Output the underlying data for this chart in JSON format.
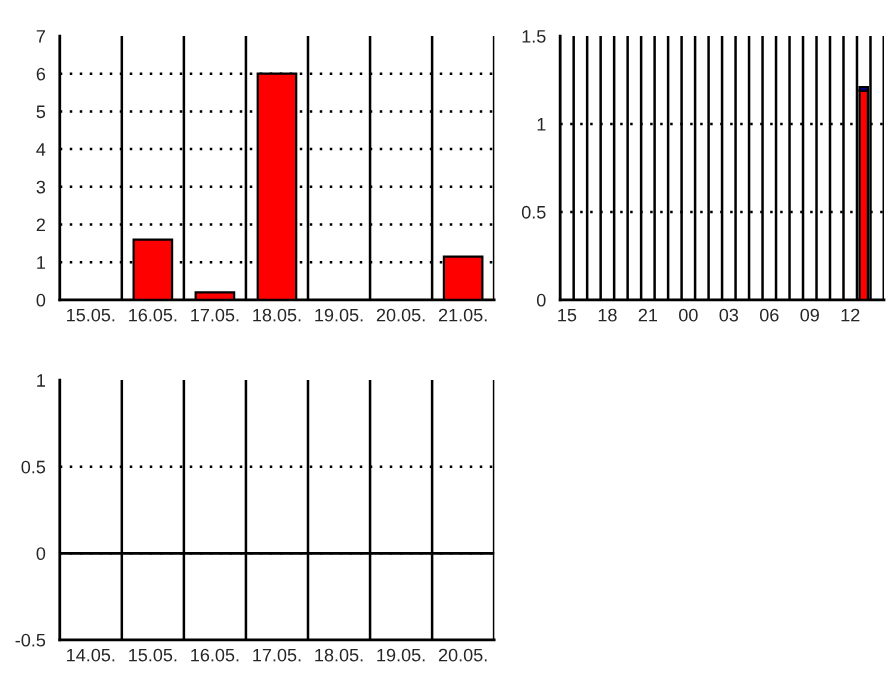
{
  "chart_data": [
    {
      "type": "bar",
      "categories": [
        "15.05.",
        "16.05.",
        "17.05.",
        "18.05.",
        "19.05.",
        "20.05.",
        "21.05."
      ],
      "values": [
        0,
        1.6,
        0.2,
        6,
        0,
        0,
        1.15
      ],
      "color": "#ff0000",
      "ylim": [
        0,
        7
      ],
      "yticks": [
        0,
        1,
        2,
        3,
        4,
        5,
        6,
        7
      ],
      "grid": "y"
    },
    {
      "type": "bar",
      "stacked": true,
      "categories": [
        "15",
        null,
        null,
        "18",
        null,
        null,
        "21",
        null,
        null,
        "00",
        null,
        null,
        "03",
        null,
        null,
        "06",
        null,
        null,
        "09",
        null,
        null,
        "12",
        null,
        null
      ],
      "series": [
        {
          "color": "#ff0000",
          "values": [
            0,
            0,
            0,
            0,
            0,
            0,
            0,
            0,
            0,
            0,
            0,
            0,
            0,
            0,
            0,
            0,
            0,
            0,
            0,
            0,
            0,
            0,
            1.19,
            0
          ]
        },
        {
          "color": "#0000cc",
          "values": [
            0,
            0,
            0,
            0,
            0,
            0,
            0,
            0,
            0,
            0,
            0,
            0,
            0,
            0,
            0,
            0,
            0,
            0,
            0,
            0,
            0,
            0,
            0.02,
            0
          ]
        }
      ],
      "ylim": [
        0,
        1.5
      ],
      "yticks": [
        0,
        0.5,
        1,
        1.5
      ],
      "grid": "y"
    },
    {
      "type": "bar",
      "categories": [
        "14.05.",
        "15.05.",
        "16.05.",
        "17.05.",
        "18.05.",
        "19.05.",
        "20.05."
      ],
      "values": [
        null,
        null,
        null,
        null,
        null,
        null,
        null
      ],
      "color": "#ff0000",
      "ylim": [
        -0.5,
        1
      ],
      "yticks": [
        -0.5,
        0,
        0.5,
        1
      ],
      "grid": "y",
      "ref_lines": [
        {
          "axis": "y",
          "value": 0
        }
      ]
    }
  ]
}
